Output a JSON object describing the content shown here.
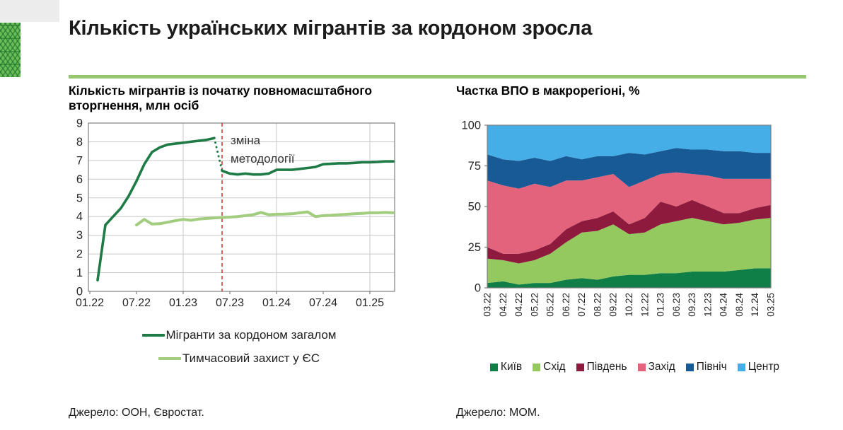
{
  "page": {
    "title": "Кількість українських мігрантів за кордоном зросла",
    "accent_color": "#95c76f"
  },
  "chart_data": [
    {
      "type": "line",
      "title": "Кількість мігрантів із початку повномасштабного вторгнення, млн осіб",
      "title_lines": [
        "Кількість мігрантів із початку повномасштабного",
        "вторгнення, млн осіб"
      ],
      "ylabel": "млн осіб",
      "ylim": [
        0,
        9
      ],
      "yticks": [
        0,
        1,
        2,
        3,
        4,
        5,
        6,
        7,
        8,
        9
      ],
      "xticks": [
        "01.22",
        "07.22",
        "01.23",
        "07.23",
        "01.24",
        "07.24",
        "01.25"
      ],
      "vgrid": [
        "01.23",
        "01.24",
        "01.25"
      ],
      "x_range": [
        "01.22",
        "04.25"
      ],
      "grid": "on",
      "legend_position": "bottom",
      "annotation": {
        "text_lines": [
          "зміна",
          "методології"
        ],
        "x": "06.23",
        "line_color": "#e03538",
        "line_style": "dashed"
      },
      "series": [
        {
          "name": "Мігранти за кордоном загалом",
          "color": "#1e7b46",
          "dotted_gap_before": "06.23",
          "x": [
            "02.22",
            "03.22",
            "04.22",
            "05.22",
            "06.22",
            "07.22",
            "08.22",
            "09.22",
            "10.22",
            "11.22",
            "12.22",
            "01.23",
            "02.23",
            "03.23",
            "04.23",
            "05.23",
            "06.23",
            "07.23",
            "08.23",
            "09.23",
            "10.23",
            "11.23",
            "12.23",
            "01.24",
            "02.24",
            "03.24",
            "04.24",
            "05.24",
            "06.24",
            "07.24",
            "08.24",
            "09.24",
            "10.24",
            "11.24",
            "12.24",
            "01.25",
            "02.25",
            "03.25",
            "04.25"
          ],
          "y": [
            0.6,
            3.55,
            4.0,
            4.45,
            5.1,
            5.9,
            6.8,
            7.45,
            7.7,
            7.85,
            7.9,
            7.95,
            8.0,
            8.05,
            8.1,
            8.2,
            6.45,
            6.3,
            6.25,
            6.3,
            6.25,
            6.25,
            6.3,
            6.5,
            6.5,
            6.5,
            6.55,
            6.6,
            6.65,
            6.8,
            6.82,
            6.85,
            6.85,
            6.87,
            6.9,
            6.9,
            6.92,
            6.95,
            6.95
          ]
        },
        {
          "name": "Тимчасовий захист у ЄС",
          "color": "#a3cd7e",
          "x": [
            "07.22",
            "08.22",
            "09.22",
            "10.22",
            "11.22",
            "12.22",
            "01.23",
            "02.23",
            "03.23",
            "04.23",
            "05.23",
            "06.23",
            "07.23",
            "08.23",
            "09.23",
            "10.23",
            "11.23",
            "12.23",
            "01.24",
            "02.24",
            "03.24",
            "04.24",
            "05.24",
            "06.24",
            "07.24",
            "08.24",
            "09.24",
            "10.24",
            "11.24",
            "12.24",
            "01.25",
            "02.25",
            "03.25",
            "04.25"
          ],
          "y": [
            3.55,
            3.85,
            3.6,
            3.62,
            3.7,
            3.78,
            3.85,
            3.8,
            3.87,
            3.9,
            3.93,
            3.95,
            3.97,
            4.0,
            4.05,
            4.1,
            4.22,
            4.1,
            4.12,
            4.13,
            4.15,
            4.2,
            4.25,
            4.0,
            4.05,
            4.07,
            4.1,
            4.12,
            4.15,
            4.17,
            4.2,
            4.2,
            4.22,
            4.2
          ]
        }
      ],
      "source": "Джерело: ООН, Євростат."
    },
    {
      "type": "area",
      "stacked": true,
      "title": "Частка ВПО в макрорегіоні, %",
      "ylim": [
        0,
        100
      ],
      "yticks": [
        0,
        25,
        50,
        75,
        100
      ],
      "grid": "off",
      "legend_position": "bottom",
      "xlabel_rotation": 90,
      "categories": [
        "03.22",
        "04.22",
        "04.22",
        "05.22",
        "05.22",
        "06.22",
        "07.22",
        "08.22",
        "09.22",
        "10.22",
        "12.22",
        "01.23",
        "06.23",
        "09.23",
        "12.23",
        "04.24",
        "08.24",
        "12.24",
        "03.25"
      ],
      "series": [
        {
          "name": "Київ",
          "color": "#107e47",
          "values": [
            3,
            4,
            2,
            3,
            3,
            5,
            6,
            5,
            7,
            8,
            8,
            9,
            9,
            10,
            10,
            10,
            11,
            12,
            12
          ]
        },
        {
          "name": "Схід",
          "color": "#94c95f",
          "values": [
            15,
            13,
            13,
            14,
            18,
            23,
            28,
            30,
            32,
            25,
            26,
            30,
            32,
            33,
            31,
            29,
            29,
            30,
            31
          ]
        },
        {
          "name": "Південь",
          "color": "#8e1b3d",
          "values": [
            7,
            4,
            6,
            6,
            6,
            8,
            7,
            8,
            8,
            6,
            9,
            14,
            9,
            11,
            9,
            7,
            6,
            7,
            8
          ]
        },
        {
          "name": "Захід",
          "color": "#e2637b",
          "values": [
            41,
            42,
            40,
            41,
            35,
            30,
            25,
            25,
            23,
            23,
            23,
            17,
            21,
            16,
            19,
            21,
            21,
            18,
            16
          ]
        },
        {
          "name": "Північ",
          "color": "#175a96",
          "values": [
            16,
            16,
            17,
            16,
            16,
            15,
            13,
            13,
            11,
            21,
            16,
            14,
            15,
            15,
            16,
            17,
            17,
            16,
            16
          ]
        },
        {
          "name": "Центр",
          "color": "#46aee6",
          "values": [
            18,
            21,
            22,
            20,
            22,
            19,
            21,
            19,
            19,
            17,
            18,
            16,
            14,
            15,
            15,
            16,
            16,
            17,
            17
          ]
        }
      ],
      "source": "Джерело: МОМ."
    }
  ]
}
